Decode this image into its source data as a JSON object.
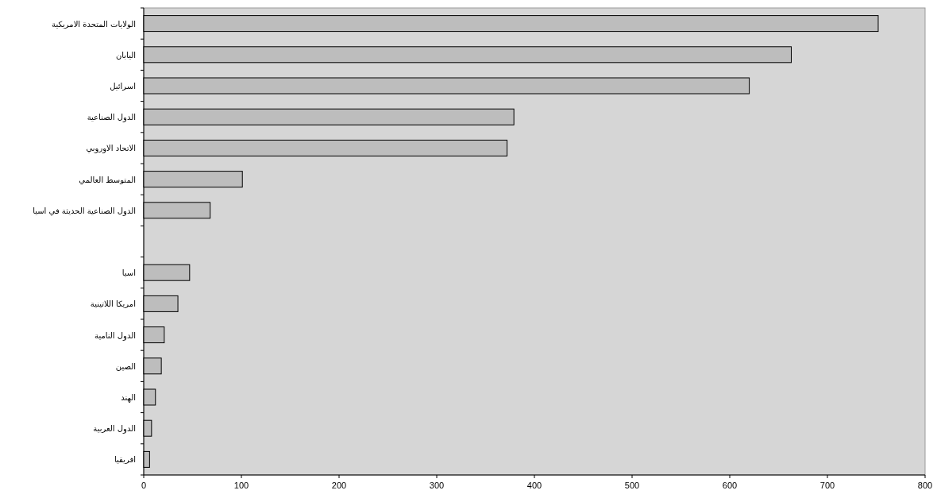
{
  "chart_data": {
    "type": "bar",
    "orientation": "horizontal",
    "categories": [
      "الولايات المتحدة الامريكية",
      "اليابان",
      "اسرائيل",
      "الدول الصناعية",
      "الاتحاد الاوروبي",
      "المتوسط العالمي",
      "الدول الصناعية الحديثة في اسيا",
      null,
      "اسيا",
      "امريكا اللاتينية",
      "الدول النامية",
      "الصين",
      "الهند",
      "الدول العربية",
      "افريقيا"
    ],
    "values": [
      752,
      663,
      620,
      379,
      372,
      101,
      68,
      null,
      47,
      35,
      21,
      18,
      12,
      8,
      6
    ],
    "color": "#bdbdbd",
    "xlim": [
      0,
      800
    ],
    "xticks": [
      0,
      100,
      200,
      300,
      400,
      500,
      600,
      700,
      800
    ]
  }
}
